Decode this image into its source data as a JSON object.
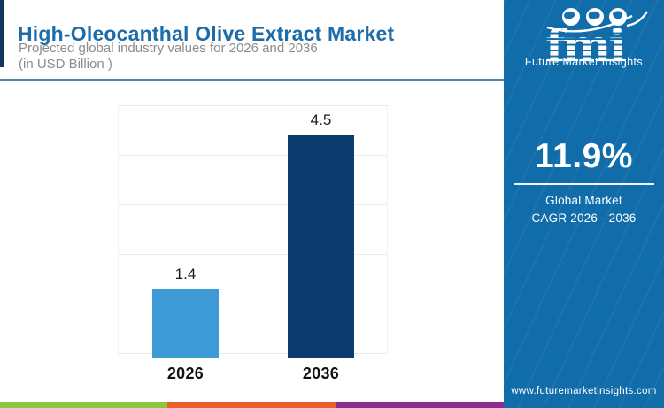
{
  "header": {
    "title": "High-Oleocanthal Olive Extract Market",
    "subtitle_line1": "Projected global industry values for 2026 and 2036",
    "subtitle_line2": "(in USD Billion )"
  },
  "chart_data": {
    "type": "bar",
    "categories": [
      "2026",
      "2036"
    ],
    "values": [
      1.4,
      4.5
    ],
    "bar_colors": [
      "#3E9AD5",
      "#0D3B6E"
    ],
    "title": "",
    "xlabel": "",
    "ylabel": "",
    "ylim": [
      0,
      5
    ],
    "grid": true,
    "legend": false,
    "value_label_format": "above-bar"
  },
  "sidebar": {
    "logo_text": "fmi",
    "brand_name": "Future Market Insights",
    "cagr_value": "11.9%",
    "caption_line1": "Global Market",
    "caption_line2": "CAGR 2026 - 2036",
    "website": "www.futuremarketinsights.com"
  },
  "colors": {
    "sidebar_blue": "#116CAA",
    "title_blue": "#1B6CA8",
    "divider_blue": "#4C86A8",
    "header_accent_navy": "#12355B",
    "bar_light_blue": "#3E9AD5",
    "bar_navy": "#0D3B6E",
    "strip_green": "#8CC640",
    "strip_orange": "#E8612C",
    "strip_purple": "#8E2B8E"
  }
}
